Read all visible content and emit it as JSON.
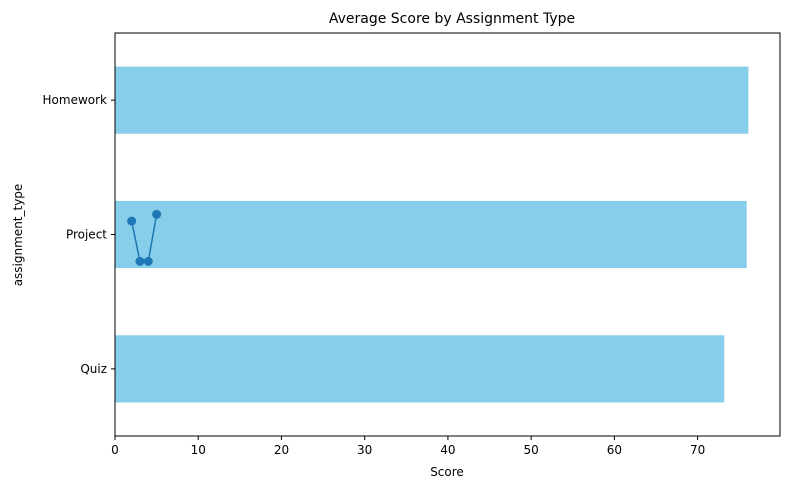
{
  "chart_data": {
    "type": "bar",
    "orientation": "horizontal",
    "title": "Average Score by Assignment Type",
    "xlabel": "Score",
    "ylabel": "assignment_type",
    "categories": [
      "Quiz",
      "Project",
      "Homework"
    ],
    "values": [
      73.2,
      75.9,
      76.1
    ],
    "xlim": [
      0,
      79.9
    ],
    "xticks": [
      0,
      10,
      20,
      30,
      40,
      50,
      60,
      70
    ],
    "grid": false,
    "legend": "none",
    "bar_color": "#87CEEB",
    "overlay_line": {
      "type": "line",
      "marker": "circle",
      "color": "#1f77b4",
      "x": [
        2,
        3,
        4,
        5
      ],
      "y_offset_from_project": [
        -0.1,
        0.2,
        0.2,
        -0.15
      ]
    }
  }
}
